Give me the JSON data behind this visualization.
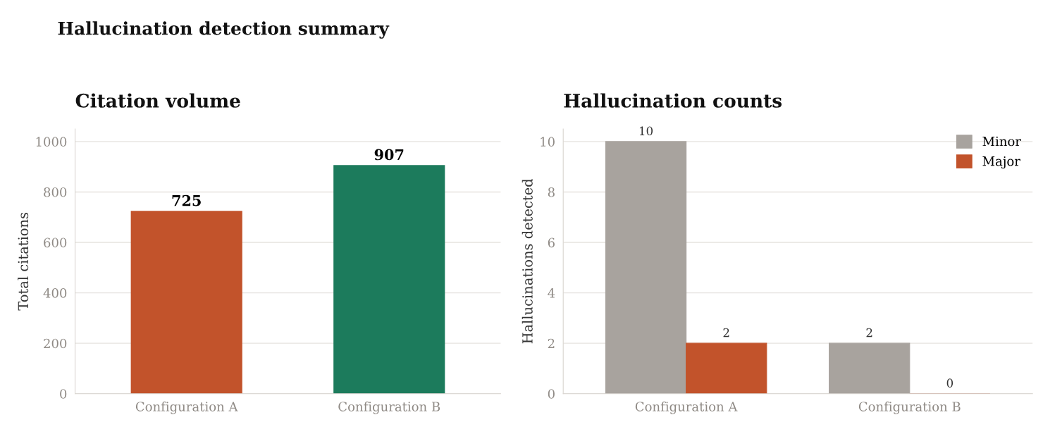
{
  "chart_data": [
    {
      "type": "bar",
      "title": "Citation volume",
      "ylabel": "Total citations",
      "annotations": [
        "Hallucination detection summary"
      ],
      "categories": [
        "Configuration A",
        "Configuration B"
      ],
      "values": [
        725,
        907
      ],
      "colors": [
        "#c2532b",
        "#1c7b5c"
      ],
      "ylim": [
        0,
        1050
      ],
      "yticks": [
        0,
        200,
        400,
        600,
        800,
        1000
      ],
      "grid": "y",
      "data_labels": true,
      "legend": false
    },
    {
      "type": "bar",
      "title": "Hallucination counts",
      "ylabel": "Hallucinations detected",
      "categories": [
        "Configuration A",
        "Configuration B"
      ],
      "series": [
        {
          "name": "Minor",
          "color": "#a8a39e",
          "values": [
            10,
            2
          ]
        },
        {
          "name": "Major",
          "color": "#c2532b",
          "values": [
            2,
            0
          ]
        }
      ],
      "ylim": [
        0,
        10.5
      ],
      "yticks": [
        0,
        2,
        4,
        6,
        8,
        10
      ],
      "grid": "y",
      "data_labels": true,
      "legend": "top right"
    }
  ]
}
